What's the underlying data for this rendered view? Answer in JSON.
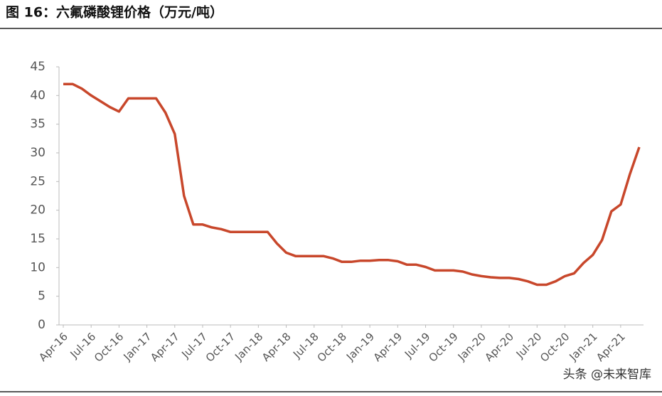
{
  "chart_data": {
    "type": "line",
    "title": "图 16：六氟磷酸锂价格（万元/吨）",
    "categories": [
      "Apr-16",
      null,
      null,
      "Jul-16",
      null,
      null,
      "Oct-16",
      null,
      null,
      "Jan-17",
      null,
      null,
      "Apr-17",
      null,
      null,
      "Jul-17",
      null,
      null,
      "Oct-17",
      null,
      null,
      "Jan-18",
      null,
      null,
      "Apr-18",
      null,
      null,
      "Jul-18",
      null,
      null,
      "Oct-18",
      null,
      null,
      "Jan-19",
      null,
      null,
      "Apr-19",
      null,
      null,
      "Jul-19",
      null,
      null,
      "Oct-19",
      null,
      null,
      "Jan-20",
      null,
      null,
      "Apr-20",
      null,
      null,
      "Jul-20",
      null,
      null,
      "Oct-20",
      null,
      null,
      "Jan-21",
      null,
      null,
      "Apr-21",
      null,
      null
    ],
    "series": [
      {
        "color": "#c8472b",
        "values": [
          42,
          42,
          41.2,
          40,
          39,
          38,
          37.2,
          39.5,
          39.5,
          39.5,
          39.5,
          37,
          33.3,
          22.5,
          17.5,
          17.5,
          17,
          16.7,
          16.2,
          16.2,
          16.2,
          16.2,
          16.2,
          14.2,
          12.6,
          12,
          12,
          12,
          12,
          11.6,
          11,
          11,
          11.2,
          11.2,
          11.3,
          11.3,
          11.1,
          10.5,
          10.5,
          10.1,
          9.5,
          9.5,
          9.5,
          9.3,
          8.8,
          8.5,
          8.3,
          8.2,
          8.2,
          8,
          7.6,
          7,
          7,
          7.6,
          8.5,
          9,
          10.8,
          12.2,
          14.8,
          19.8,
          21,
          26.3,
          31
        ]
      }
    ],
    "ylim": [
      0,
      45
    ],
    "yticks": [
      0,
      5,
      10,
      15,
      20,
      25,
      30,
      35,
      40,
      45
    ],
    "grid": false,
    "watermark": "头条 @未来智库"
  }
}
